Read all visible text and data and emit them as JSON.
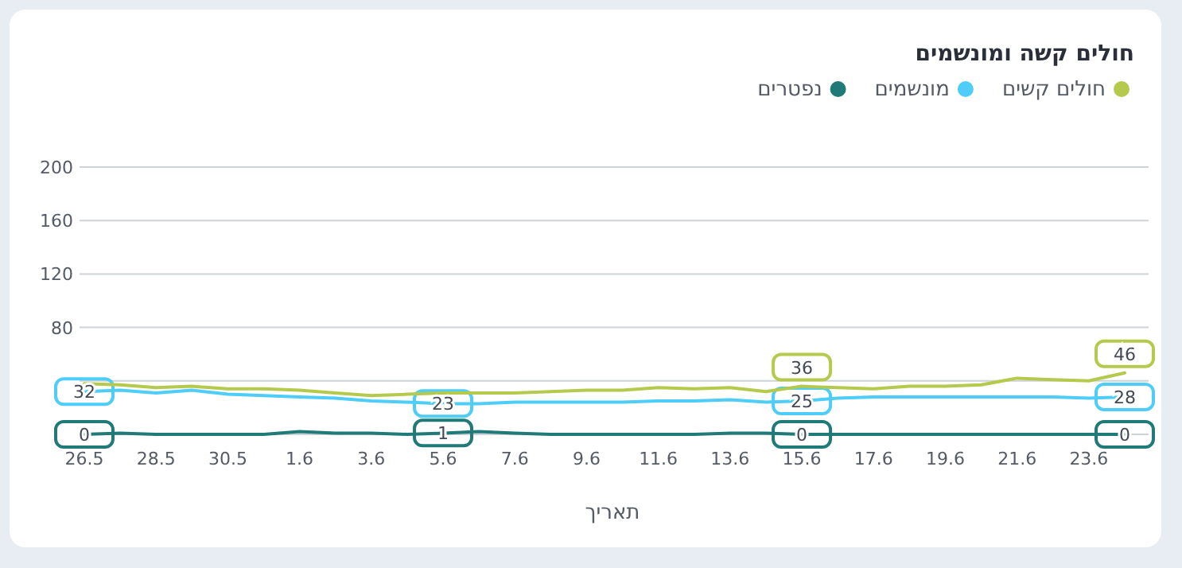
{
  "chart_data": {
    "type": "line",
    "title": "חולים קשה ומונשמים",
    "xlabel": "תאריך",
    "categories": [
      "26.5",
      null,
      "28.5",
      null,
      "30.5",
      null,
      "1.6",
      null,
      "3.6",
      null,
      "5.6",
      null,
      "7.6",
      null,
      "9.6",
      null,
      "11.6",
      null,
      "13.6",
      null,
      "15.6",
      null,
      "17.6",
      null,
      "19.6",
      null,
      "21.6",
      null,
      "23.6",
      null
    ],
    "series": [
      {
        "name": "חולים קשים",
        "color": "#b5c94c",
        "values": [
          38,
          37,
          35,
          36,
          34,
          34,
          33,
          31,
          29,
          30,
          31,
          31,
          31,
          32,
          33,
          33,
          35,
          34,
          35,
          32,
          36,
          35,
          34,
          36,
          36,
          37,
          42,
          41,
          40,
          46
        ],
        "value_labels": [
          null,
          null,
          null,
          null,
          null,
          null,
          null,
          null,
          null,
          null,
          null,
          null,
          null,
          null,
          null,
          null,
          null,
          null,
          null,
          null,
          "36",
          null,
          null,
          null,
          null,
          null,
          null,
          null,
          null,
          "46"
        ]
      },
      {
        "name": "מונשמים",
        "color": "#4dcdf7",
        "values": [
          32,
          33,
          31,
          33,
          30,
          29,
          28,
          27,
          25,
          24,
          23,
          23,
          24,
          24,
          24,
          24,
          25,
          25,
          26,
          24,
          25,
          27,
          28,
          28,
          28,
          28,
          28,
          28,
          27,
          28
        ],
        "value_labels": [
          "32",
          null,
          null,
          null,
          null,
          null,
          null,
          null,
          null,
          null,
          "23",
          null,
          null,
          null,
          null,
          null,
          null,
          null,
          null,
          null,
          "25",
          null,
          null,
          null,
          null,
          null,
          null,
          null,
          null,
          "28"
        ]
      },
      {
        "name": "נפטרים",
        "color": "#1f7a78",
        "values": [
          0,
          1,
          0,
          0,
          0,
          0,
          2,
          1,
          1,
          0,
          1,
          2,
          1,
          0,
          0,
          0,
          0,
          0,
          1,
          1,
          0,
          0,
          0,
          0,
          0,
          0,
          0,
          0,
          0,
          0
        ],
        "value_labels": [
          "0",
          null,
          null,
          null,
          null,
          null,
          null,
          null,
          null,
          null,
          "1",
          null,
          null,
          null,
          null,
          null,
          null,
          null,
          null,
          null,
          "0",
          null,
          null,
          null,
          null,
          null,
          null,
          null,
          null,
          "0"
        ]
      }
    ],
    "ylim": [
      0,
      200
    ],
    "yticks": [
      {
        "value": 0,
        "label": null
      },
      {
        "value": 40,
        "label": null
      },
      80,
      120,
      160,
      200
    ],
    "grid": "y",
    "legend": "top right"
  }
}
